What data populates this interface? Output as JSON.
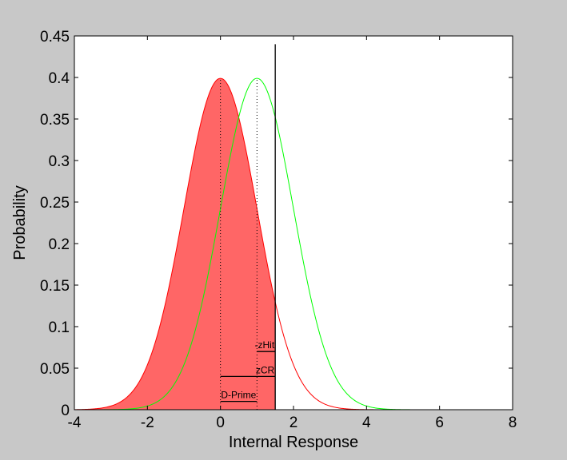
{
  "chart_data": {
    "type": "line",
    "title": "",
    "xlabel": "Internal Response",
    "ylabel": "Probability",
    "xlim": [
      -4,
      8
    ],
    "ylim": [
      0,
      0.45
    ],
    "xticks": [
      -4,
      -2,
      0,
      2,
      4,
      6,
      8
    ],
    "yticks": [
      0,
      0.05,
      0.1,
      0.15,
      0.2,
      0.25,
      0.3,
      0.35,
      0.4,
      0.45
    ],
    "grid": false,
    "series": [
      {
        "distribution": "normal",
        "mean": 0,
        "sd": 1,
        "color": "#ff0000",
        "fill": "#ff6666",
        "fill_range": [
          -4,
          1.5
        ]
      },
      {
        "distribution": "normal",
        "mean": 1,
        "sd": 1,
        "color": "#00ff00"
      }
    ],
    "criterion": {
      "x": 1.5,
      "y_top": 0.44,
      "color": "#000000"
    },
    "dotted_lines": [
      {
        "x": 0,
        "y_top": 0.4
      },
      {
        "x": 1,
        "y_top": 0.4
      }
    ],
    "annotations": [
      {
        "label": "D-Prime",
        "x1": 0,
        "x2": 1,
        "y": 0.01
      },
      {
        "label": "zCR",
        "x1": 0,
        "x2": 1.5,
        "y": 0.04
      },
      {
        "label": "-zHit",
        "x1": 1,
        "x2": 1.5,
        "y": 0.07
      }
    ]
  }
}
